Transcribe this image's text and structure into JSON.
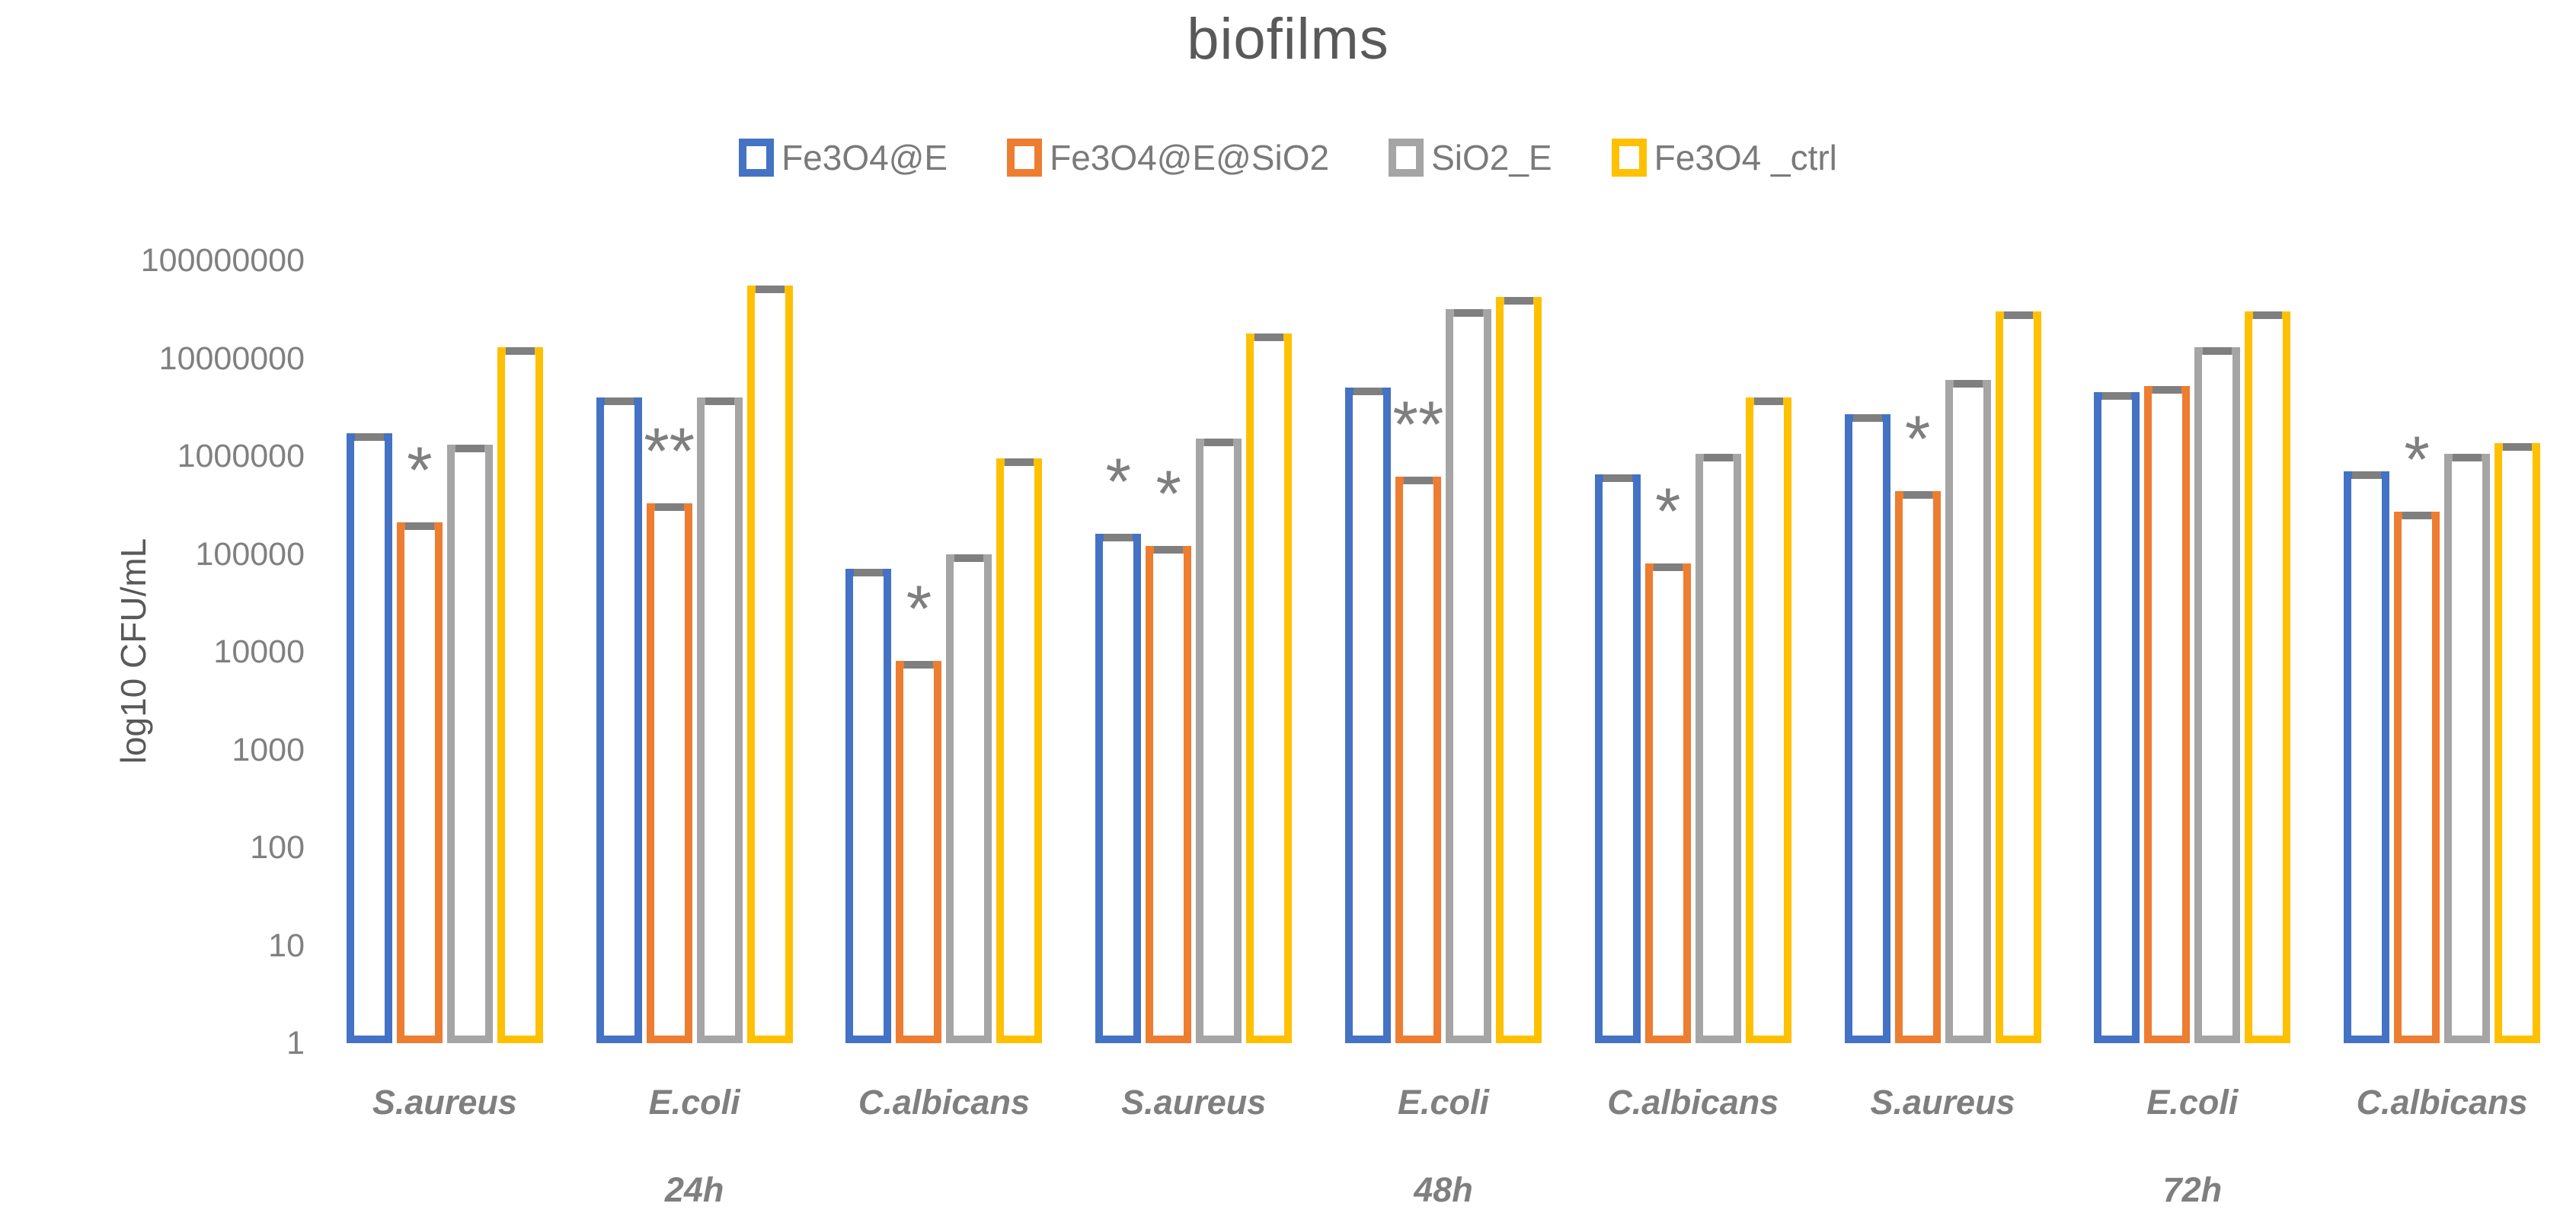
{
  "title": "biofilms",
  "y_axis": {
    "title": "log10 CFU/mL",
    "ticks": [
      "100000000",
      "10000000",
      "1000000",
      "100000",
      "10000",
      "1000",
      "100",
      "10",
      "1"
    ]
  },
  "x_axis": {
    "organism_labels": [
      "S.aureus",
      "E.coli",
      "C.albicans",
      "S.aureus",
      "E.coli",
      "C.albicans",
      "S.aureus",
      "E.coli",
      "C.albicans"
    ],
    "time_labels": [
      {
        "label": "24h",
        "group_index": 1
      },
      {
        "label": "48h",
        "group_index": 4
      },
      {
        "label": "72h",
        "group_index": 7
      }
    ]
  },
  "legend": [
    {
      "label": "Fe3O4@E",
      "color": "#4472C4"
    },
    {
      "label": "Fe3O4@E@SiO2",
      "color": "#ED7D31"
    },
    {
      "label": "SiO2_E",
      "color": "#A5A5A5"
    },
    {
      "label": "Fe3O4 _ctrl",
      "color": "#FFC000"
    }
  ],
  "colors": {
    "error_cap": "#7f7f7f",
    "significance_marks": "#7f7f7f",
    "title_text": "#595959",
    "axis_text": "#808080"
  },
  "chart_data": {
    "type": "bar",
    "y_scale": "log10",
    "ylim": [
      1,
      100000000
    ],
    "grid": false,
    "legend_position": "top",
    "title": "biofilms",
    "ylabel": "log10 CFU/mL",
    "categories": [
      {
        "time": "24h",
        "organism": "S.aureus"
      },
      {
        "time": "24h",
        "organism": "E.coli"
      },
      {
        "time": "24h",
        "organism": "C.albicans"
      },
      {
        "time": "48h",
        "organism": "S.aureus"
      },
      {
        "time": "48h",
        "organism": "E.coli"
      },
      {
        "time": "48h",
        "organism": "C.albicans"
      },
      {
        "time": "72h",
        "organism": "S.aureus"
      },
      {
        "time": "72h",
        "organism": "E.coli"
      },
      {
        "time": "72h",
        "organism": "C.albicans"
      }
    ],
    "series": [
      {
        "name": "Fe3O4@E",
        "color": "#4472C4",
        "values": [
          1700000,
          4000000,
          70000,
          160000,
          5000000,
          650000,
          2700000,
          4500000,
          700000
        ]
      },
      {
        "name": "Fe3O4@E@SiO2",
        "color": "#ED7D31",
        "values": [
          210000,
          330000,
          8000,
          120000,
          620000,
          80000,
          440000,
          5200000,
          270000
        ]
      },
      {
        "name": "SiO2_E",
        "color": "#A5A5A5",
        "values": [
          1300000,
          4000000,
          100000,
          1500000,
          32000000,
          1050000,
          6000000,
          13000000,
          1050000
        ]
      },
      {
        "name": "Fe3O4 _ctrl",
        "color": "#FFC000",
        "values": [
          13000000,
          55000000,
          950000,
          18000000,
          42000000,
          4000000,
          30000000,
          30000000,
          1350000
        ]
      }
    ],
    "error_caps": true,
    "significance": [
      {
        "group": 0,
        "series": 1,
        "text": "*"
      },
      {
        "group": 1,
        "series": 1,
        "text": "**"
      },
      {
        "group": 2,
        "series": 1,
        "text": "*"
      },
      {
        "group": 3,
        "series": 0,
        "text": "*"
      },
      {
        "group": 3,
        "series": 1,
        "text": "*"
      },
      {
        "group": 4,
        "series": 1,
        "text": "**"
      },
      {
        "group": 5,
        "series": 1,
        "text": "*"
      },
      {
        "group": 6,
        "series": 1,
        "text": "*"
      },
      {
        "group": 8,
        "series": 1,
        "text": "*"
      }
    ]
  }
}
